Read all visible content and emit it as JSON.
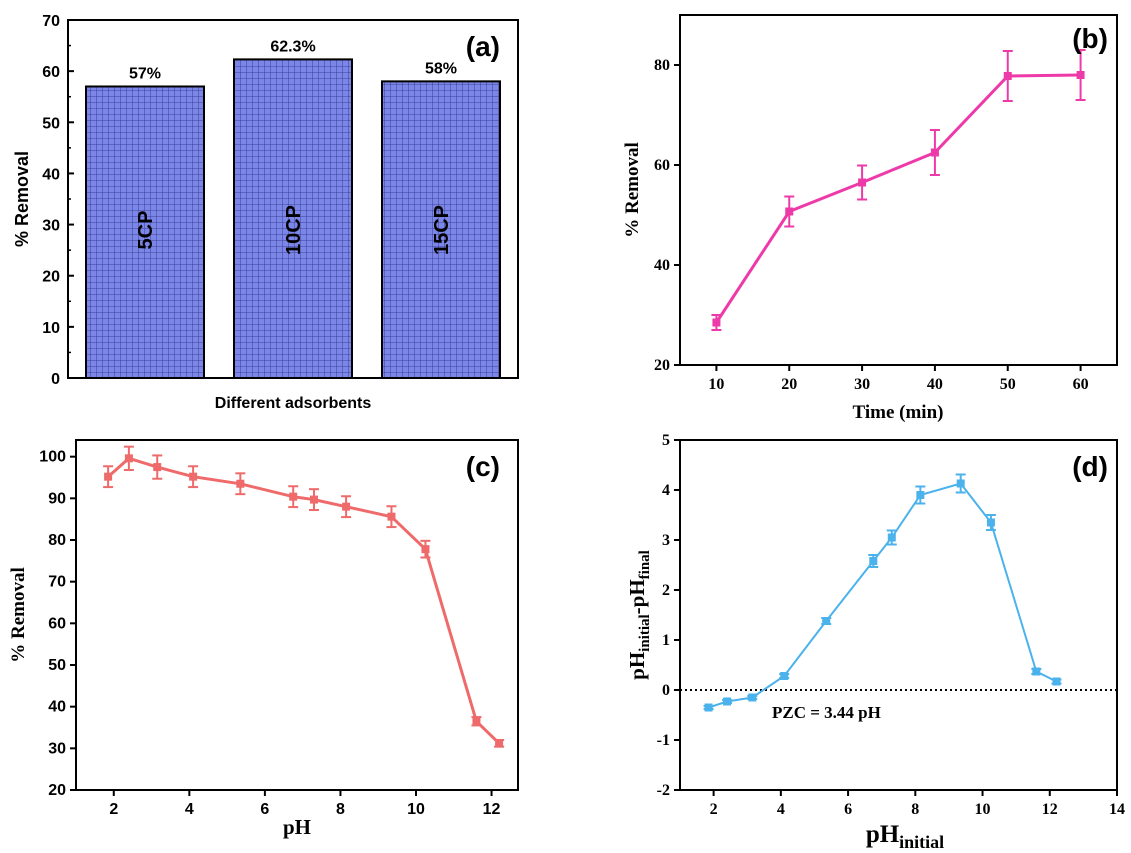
{
  "chart_data": [
    {
      "panel_label": "(a)",
      "type": "bar",
      "xlabel": "Different adsorbents",
      "ylabel": "% Removal",
      "ylim": [
        0,
        70
      ],
      "yticks": [
        "0",
        "10",
        "20",
        "30",
        "40",
        "50",
        "60",
        "70"
      ],
      "categories": [
        "5CP",
        "10CP",
        "15CP"
      ],
      "values": [
        57,
        62.3,
        58
      ],
      "data_labels": [
        "57%",
        "62.3%",
        "58%"
      ],
      "bar_color": "#7b86e6",
      "grid": false
    },
    {
      "panel_label": "(b)",
      "type": "line",
      "xlabel": "Time (min)",
      "ylabel": "% Removal",
      "xlim": [
        5,
        65
      ],
      "ylim": [
        20,
        90
      ],
      "xticks": [
        "10",
        "20",
        "30",
        "40",
        "50",
        "60"
      ],
      "yticks": [
        "20",
        "40",
        "60",
        "80"
      ],
      "x": [
        10,
        20,
        30,
        40,
        50,
        60
      ],
      "y": [
        28.5,
        50.7,
        56.5,
        62.5,
        77.8,
        78
      ],
      "err": [
        1.5,
        3,
        3.4,
        4.5,
        5,
        5
      ],
      "color": "#ee3aa9",
      "grid": false
    },
    {
      "panel_label": "(c)",
      "type": "line",
      "xlabel": "pH",
      "ylabel": "% Removal",
      "xlim": [
        1,
        12.7
      ],
      "ylim": [
        20,
        104
      ],
      "xticks": [
        "2",
        "4",
        "6",
        "8",
        "10",
        "12"
      ],
      "yticks": [
        "20",
        "30",
        "40",
        "50",
        "60",
        "70",
        "80",
        "90",
        "100"
      ],
      "x": [
        1.85,
        2.4,
        3.15,
        4.1,
        5.35,
        6.75,
        7.3,
        8.15,
        9.35,
        10.25,
        11.6,
        12.2
      ],
      "y": [
        95.2,
        99.6,
        97.5,
        95.2,
        93.5,
        90.4,
        89.7,
        88,
        85.6,
        77.8,
        36.5,
        31.2
      ],
      "err": [
        2.5,
        2.8,
        2.8,
        2.5,
        2.5,
        2.5,
        2.5,
        2.5,
        2.5,
        2,
        1,
        0.8
      ],
      "color": "#ef6a6a",
      "grid": false
    },
    {
      "panel_label": "(d)",
      "type": "line",
      "xlabel": "pH",
      "xlabel_sub": "initial",
      "ylabel_parts": [
        "pH",
        "initial",
        "-pH",
        "final"
      ],
      "xlim": [
        1,
        14
      ],
      "ylim": [
        -2,
        5
      ],
      "xticks": [
        "2",
        "4",
        "6",
        "8",
        "10",
        "12",
        "14"
      ],
      "yticks": [
        "-2",
        "-1",
        "0",
        "1",
        "2",
        "3",
        "4",
        "5"
      ],
      "x": [
        1.85,
        2.4,
        3.15,
        4.1,
        5.35,
        6.75,
        7.3,
        8.15,
        9.35,
        10.25,
        11.6,
        12.2
      ],
      "y": [
        -0.35,
        -0.23,
        -0.15,
        0.28,
        1.38,
        2.58,
        3.05,
        3.9,
        4.13,
        3.35,
        0.37,
        0.17
      ],
      "err": [
        0.03,
        0.03,
        0.03,
        0.04,
        0.06,
        0.12,
        0.14,
        0.17,
        0.18,
        0.15,
        0.05,
        0.04
      ],
      "color": "#4bb2ec",
      "reference_line": {
        "y": 0,
        "style": "dotted"
      },
      "annotation": "PZC = 3.44 pH",
      "grid": false
    }
  ]
}
